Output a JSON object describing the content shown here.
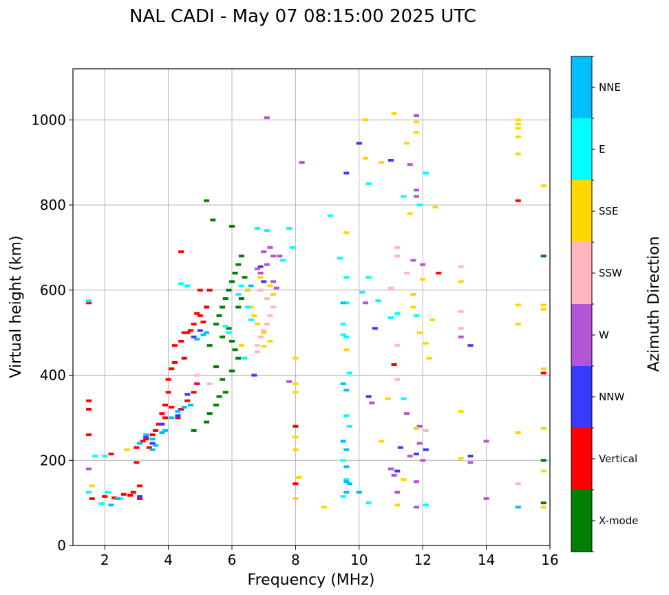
{
  "chart_data": {
    "type": "scatter",
    "title": "NAL CADI - May 07 08:15:00 2025 UTC",
    "xlabel": "Frequency (MHz)",
    "ylabel": "Virtual height (km)",
    "xlim": [
      1,
      16
    ],
    "ylim": [
      0,
      1120
    ],
    "xticks": [
      "2",
      "4",
      "6",
      "8",
      "10",
      "12",
      "14",
      "16"
    ],
    "yticks": [
      "0",
      "200",
      "400",
      "600",
      "800",
      "1000"
    ],
    "grid": true,
    "colorbar": {
      "label": "Azimuth Direction",
      "categories": [
        {
          "name": "X-mode",
          "color": "#008000"
        },
        {
          "name": "Vertical",
          "color": "#ff0000"
        },
        {
          "name": "NNW",
          "color": "#3a3aff"
        },
        {
          "name": "W",
          "color": "#b455d6"
        },
        {
          "name": "SSW",
          "color": "#ffb6c1"
        },
        {
          "name": "SSE",
          "color": "#ffd700"
        },
        {
          "name": "E",
          "color": "#00ffff"
        },
        {
          "name": "NNE",
          "color": "#00bfff"
        }
      ]
    },
    "series": [
      {
        "name": "X-mode",
        "points": [
          [
            5.5,
            520
          ],
          [
            5.6,
            540
          ],
          [
            5.7,
            560
          ],
          [
            5.8,
            580
          ],
          [
            5.9,
            600
          ],
          [
            6.0,
            620
          ],
          [
            6.1,
            640
          ],
          [
            6.2,
            660
          ],
          [
            6.3,
            680
          ],
          [
            6.0,
            750
          ],
          [
            5.4,
            765
          ],
          [
            5.2,
            810
          ],
          [
            5.3,
            470
          ],
          [
            5.5,
            420
          ],
          [
            5.7,
            390
          ],
          [
            5.8,
            360
          ],
          [
            5.5,
            330
          ],
          [
            5.3,
            310
          ],
          [
            5.2,
            290
          ],
          [
            4.8,
            270
          ],
          [
            6.1,
            460
          ],
          [
            6.2,
            440
          ],
          [
            6.0,
            410
          ],
          [
            6.4,
            630
          ],
          [
            6.5,
            600
          ],
          [
            6.3,
            580
          ],
          [
            5.9,
            510
          ],
          [
            5.7,
            490
          ],
          [
            15.8,
            680
          ],
          [
            15.8,
            200
          ],
          [
            15.8,
            100
          ],
          [
            6.2,
            560
          ],
          [
            6.0,
            480
          ],
          [
            5.6,
            350
          ]
        ]
      },
      {
        "name": "Vertical",
        "points": [
          [
            1.5,
            570
          ],
          [
            1.5,
            340
          ],
          [
            1.5,
            320
          ],
          [
            1.5,
            260
          ],
          [
            2.2,
            215
          ],
          [
            3.0,
            230
          ],
          [
            3.2,
            245
          ],
          [
            3.5,
            260
          ],
          [
            3.7,
            285
          ],
          [
            3.8,
            310
          ],
          [
            3.9,
            330
          ],
          [
            4.0,
            360
          ],
          [
            4.0,
            390
          ],
          [
            4.1,
            415
          ],
          [
            4.2,
            430
          ],
          [
            4.3,
            300
          ],
          [
            4.4,
            320
          ],
          [
            4.6,
            340
          ],
          [
            4.8,
            360
          ],
          [
            4.9,
            380
          ],
          [
            4.4,
            480
          ],
          [
            4.6,
            500
          ],
          [
            4.8,
            520
          ],
          [
            5.0,
            540
          ],
          [
            5.2,
            560
          ],
          [
            5.3,
            600
          ],
          [
            4.5,
            440
          ],
          [
            4.4,
            690
          ],
          [
            4.7,
            505
          ],
          [
            5.1,
            525
          ],
          [
            2.6,
            120
          ],
          [
            2.9,
            125
          ],
          [
            3.1,
            140
          ],
          [
            1.6,
            110
          ],
          [
            2.0,
            115
          ],
          [
            2.3,
            112
          ],
          [
            2.8,
            118
          ],
          [
            11.1,
            425
          ],
          [
            10.0,
            945
          ],
          [
            12.5,
            640
          ],
          [
            15.0,
            810
          ],
          [
            15.8,
            405
          ],
          [
            8.0,
            145
          ],
          [
            8.0,
            280
          ],
          [
            5.0,
            600
          ],
          [
            4.9,
            545
          ],
          [
            4.2,
            470
          ],
          [
            3.3,
            250
          ],
          [
            3.6,
            270
          ],
          [
            3.9,
            300
          ],
          [
            4.1,
            325
          ],
          [
            4.5,
            500
          ],
          [
            3.4,
            230
          ],
          [
            3.0,
            195
          ],
          [
            3.1,
            110
          ]
        ]
      },
      {
        "name": "NNW",
        "points": [
          [
            3.3,
            255
          ],
          [
            3.8,
            285
          ],
          [
            4.6,
            355
          ],
          [
            4.8,
            490
          ],
          [
            5.0,
            505
          ],
          [
            10.0,
            945
          ],
          [
            10.3,
            350
          ],
          [
            10.5,
            510
          ],
          [
            11.0,
            905
          ],
          [
            11.2,
            175
          ],
          [
            11.8,
            215
          ],
          [
            13.5,
            210
          ],
          [
            13.5,
            470
          ],
          [
            9.6,
            875
          ],
          [
            7.0,
            620
          ],
          [
            6.9,
            655
          ],
          [
            6.7,
            400
          ],
          [
            3.5,
            240
          ],
          [
            4.3,
            305
          ],
          [
            11.3,
            230
          ],
          [
            12.1,
            225
          ],
          [
            3.1,
            115
          ]
        ]
      },
      {
        "name": "W",
        "points": [
          [
            7.1,
            1005
          ],
          [
            7.0,
            690
          ],
          [
            7.2,
            700
          ],
          [
            7.3,
            680
          ],
          [
            7.1,
            660
          ],
          [
            6.8,
            650
          ],
          [
            6.9,
            640
          ],
          [
            7.3,
            620
          ],
          [
            7.4,
            605
          ],
          [
            7.5,
            680
          ],
          [
            8.2,
            900
          ],
          [
            10.2,
            570
          ],
          [
            10.4,
            335
          ],
          [
            11.6,
            895
          ],
          [
            11.8,
            1010
          ],
          [
            11.8,
            835
          ],
          [
            11.8,
            820
          ],
          [
            11.7,
            670
          ],
          [
            12.0,
            660
          ],
          [
            11.9,
            280
          ],
          [
            11.9,
            240
          ],
          [
            11.8,
            150
          ],
          [
            11.8,
            90
          ],
          [
            11.6,
            210
          ],
          [
            11.2,
            125
          ],
          [
            11.0,
            180
          ],
          [
            13.2,
            490
          ],
          [
            13.5,
            195
          ],
          [
            14.0,
            245
          ],
          [
            14.0,
            110
          ],
          [
            12.0,
            200
          ],
          [
            7.8,
            385
          ],
          [
            11.1,
            165
          ],
          [
            1.5,
            180
          ],
          [
            11.5,
            310
          ]
        ]
      },
      {
        "name": "SSW",
        "points": [
          [
            6.8,
            470
          ],
          [
            6.9,
            490
          ],
          [
            7.0,
            505
          ],
          [
            7.1,
            520
          ],
          [
            7.2,
            540
          ],
          [
            7.3,
            560
          ],
          [
            7.1,
            580
          ],
          [
            6.9,
            600
          ],
          [
            6.8,
            455
          ],
          [
            11.2,
            700
          ],
          [
            11.2,
            680
          ],
          [
            11.2,
            470
          ],
          [
            11.2,
            390
          ],
          [
            11.5,
            640
          ],
          [
            12.1,
            270
          ],
          [
            13.2,
            655
          ],
          [
            13.2,
            550
          ],
          [
            13.2,
            510
          ],
          [
            15.0,
            145
          ],
          [
            11.0,
            605
          ],
          [
            4.9,
            400
          ],
          [
            5.3,
            380
          ]
        ]
      },
      {
        "name": "SSE",
        "points": [
          [
            6.6,
            560
          ],
          [
            6.7,
            540
          ],
          [
            6.8,
            520
          ],
          [
            7.0,
            500
          ],
          [
            7.2,
            480
          ],
          [
            7.3,
            590
          ],
          [
            7.2,
            610
          ],
          [
            6.9,
            630
          ],
          [
            6.5,
            600
          ],
          [
            6.3,
            470
          ],
          [
            8.0,
            440
          ],
          [
            8.0,
            380
          ],
          [
            8.0,
            360
          ],
          [
            8.0,
            255
          ],
          [
            8.0,
            225
          ],
          [
            8.1,
            160
          ],
          [
            8.0,
            110
          ],
          [
            9.6,
            735
          ],
          [
            9.6,
            460
          ],
          [
            10.2,
            1000
          ],
          [
            10.2,
            910
          ],
          [
            10.7,
            900
          ],
          [
            10.9,
            345
          ],
          [
            11.1,
            1015
          ],
          [
            11.5,
            945
          ],
          [
            11.6,
            780
          ],
          [
            11.7,
            590
          ],
          [
            11.7,
            560
          ],
          [
            11.8,
            995
          ],
          [
            11.8,
            970
          ],
          [
            11.9,
            500
          ],
          [
            12.0,
            625
          ],
          [
            12.1,
            475
          ],
          [
            12.3,
            530
          ],
          [
            12.4,
            795
          ],
          [
            12.2,
            440
          ],
          [
            13.2,
            620
          ],
          [
            13.2,
            315
          ],
          [
            13.2,
            205
          ],
          [
            15.0,
            1000
          ],
          [
            15.0,
            990
          ],
          [
            15.0,
            980
          ],
          [
            15.0,
            960
          ],
          [
            15.0,
            920
          ],
          [
            15.0,
            565
          ],
          [
            15.0,
            520
          ],
          [
            15.0,
            265
          ],
          [
            15.8,
            845
          ],
          [
            15.8,
            565
          ],
          [
            15.8,
            555
          ],
          [
            15.8,
            415
          ],
          [
            15.8,
            275
          ],
          [
            15.8,
            175
          ],
          [
            15.8,
            90
          ],
          [
            11.4,
            155
          ],
          [
            11.2,
            95
          ],
          [
            10.7,
            245
          ],
          [
            8.9,
            90
          ],
          [
            7.0,
            468
          ],
          [
            1.6,
            140
          ],
          [
            2.7,
            225
          ],
          [
            11.8,
            275
          ]
        ]
      },
      {
        "name": "E",
        "points": [
          [
            1.5,
            575
          ],
          [
            1.7,
            210
          ],
          [
            2.0,
            210
          ],
          [
            6.3,
            610
          ],
          [
            6.2,
            590
          ],
          [
            6.4,
            440
          ],
          [
            6.5,
            560
          ],
          [
            6.6,
            530
          ],
          [
            6.8,
            745
          ],
          [
            7.1,
            740
          ],
          [
            7.6,
            670
          ],
          [
            7.8,
            745
          ],
          [
            7.9,
            700
          ],
          [
            9.1,
            775
          ],
          [
            9.4,
            675
          ],
          [
            9.5,
            520
          ],
          [
            9.5,
            495
          ],
          [
            9.5,
            245
          ],
          [
            9.5,
            200
          ],
          [
            9.5,
            115
          ],
          [
            9.6,
            630
          ],
          [
            9.6,
            570
          ],
          [
            9.6,
            490
          ],
          [
            9.6,
            305
          ],
          [
            9.6,
            155
          ],
          [
            9.7,
            405
          ],
          [
            9.7,
            280
          ],
          [
            10.1,
            595
          ],
          [
            10.3,
            850
          ],
          [
            10.3,
            630
          ],
          [
            10.3,
            100
          ],
          [
            10.6,
            575
          ],
          [
            11.0,
            535
          ],
          [
            11.2,
            545
          ],
          [
            11.4,
            345
          ],
          [
            11.4,
            820
          ],
          [
            11.9,
            800
          ],
          [
            12.1,
            875
          ],
          [
            12.1,
            95
          ],
          [
            11.8,
            540
          ],
          [
            4.6,
            610
          ],
          [
            4.4,
            615
          ],
          [
            5.8,
            515
          ],
          [
            5.9,
            500
          ],
          [
            2.1,
            125
          ],
          [
            2.5,
            110
          ],
          [
            1.9,
            98
          ],
          [
            1.5,
            125
          ]
        ]
      },
      {
        "name": "NNE",
        "points": [
          [
            3.1,
            240
          ],
          [
            3.3,
            260
          ],
          [
            3.5,
            250
          ],
          [
            3.6,
            235
          ],
          [
            3.8,
            265
          ],
          [
            3.9,
            270
          ],
          [
            4.1,
            300
          ],
          [
            4.3,
            315
          ],
          [
            4.5,
            325
          ],
          [
            4.7,
            330
          ],
          [
            4.9,
            485
          ],
          [
            5.1,
            495
          ],
          [
            5.2,
            500
          ],
          [
            9.5,
            570
          ],
          [
            9.5,
            380
          ],
          [
            9.5,
            245
          ],
          [
            9.6,
            365
          ],
          [
            9.6,
            225
          ],
          [
            9.6,
            185
          ],
          [
            9.6,
            150
          ],
          [
            9.7,
            145
          ],
          [
            9.6,
            125
          ],
          [
            10.0,
            125
          ],
          [
            15.0,
            90
          ],
          [
            2.2,
            95
          ],
          [
            2.4,
            110
          ],
          [
            3.5,
            225
          ],
          [
            6.6,
            610
          ]
        ]
      }
    ]
  }
}
